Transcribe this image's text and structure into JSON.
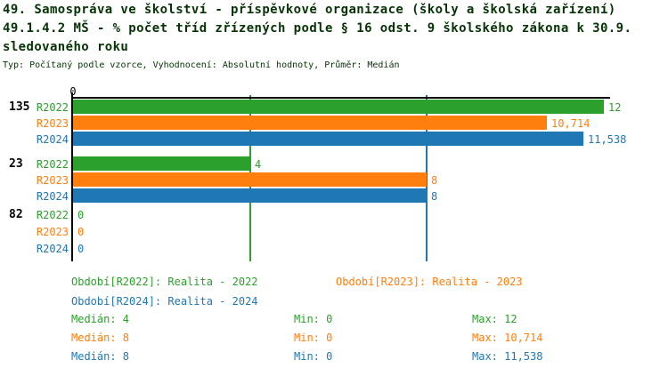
{
  "title": {
    "line1": "49. Samospráva ve školství - příspěvkové organizace (školy a školská zařízení)",
    "line2": "49.1.4.2 MŠ - % počet tříd zřízených podle § 16 odst. 9 školského zákona k 30.9.",
    "line3": "sledovaného roku",
    "meta": "Typ: Počítaný podle vzorce, Vyhodnocení: Absolutní hodnoty, Průměr: Medián"
  },
  "colors": {
    "r2022": "#2ca02c",
    "r2023": "#ff7f0e",
    "r2024": "#1f77b4",
    "title_text": "#063306",
    "axis": "#000000",
    "background": "#ffffff"
  },
  "chart_data": {
    "type": "bar",
    "orientation": "horizontal",
    "title": "49.1.4.2 MŠ - % počet tříd zřízených podle § 16 odst. 9 školského zákona k 30.9. sledovaného roku",
    "x_axis": {
      "min": 0,
      "max": 12,
      "tick_labels": [
        "0"
      ],
      "tick_values": [
        0
      ]
    },
    "grid": "median-lines-only",
    "series_names": [
      "R2022",
      "R2023",
      "R2024"
    ],
    "series_colors": [
      "#2ca02c",
      "#ff7f0e",
      "#1f77b4"
    ],
    "groups": [
      {
        "label": "135",
        "values": [
          12,
          10.714,
          11.538
        ],
        "value_labels": [
          "12",
          "10,714",
          "11,538"
        ]
      },
      {
        "label": "23",
        "values": [
          4,
          8,
          8
        ],
        "value_labels": [
          "4",
          "8",
          "8"
        ]
      },
      {
        "label": "82",
        "values": [
          0,
          0,
          0
        ],
        "value_labels": [
          "0",
          "0",
          "0"
        ]
      }
    ],
    "median_lines": [
      {
        "series": "R2022",
        "value": 4
      },
      {
        "series": "R2023",
        "value": 8
      },
      {
        "series": "R2024",
        "value": 8
      }
    ]
  },
  "legend": {
    "items": [
      {
        "series": "R2022",
        "label": "Období[R2022]: Realita - 2022"
      },
      {
        "series": "R2023",
        "label": "Období[R2023]: Realita - 2023"
      },
      {
        "series": "R2024",
        "label": "Období[R2024]: Realita - 2024"
      }
    ]
  },
  "stats": {
    "rows": [
      {
        "series": "R2022",
        "median": "Medián: 4",
        "min": "Min: 0",
        "max": "Max: 12"
      },
      {
        "series": "R2023",
        "median": "Medián: 8",
        "min": "Min: 0",
        "max": "Max: 10,714"
      },
      {
        "series": "R2024",
        "median": "Medián: 8",
        "min": "Min: 0",
        "max": "Max: 11,538"
      }
    ]
  }
}
